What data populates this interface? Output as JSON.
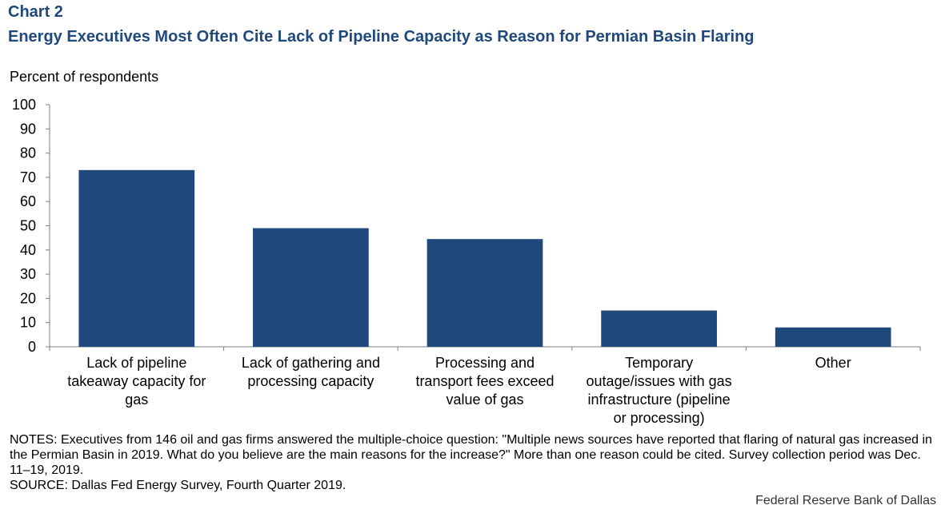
{
  "header": {
    "chart_label": "Chart 2",
    "title": "Energy Executives Most Often Cite Lack of Pipeline Capacity as Reason for Permian Basin Flaring"
  },
  "colors": {
    "bar": "#1f497d",
    "title": "#1f497d"
  },
  "chart_data": {
    "type": "bar",
    "title": "Energy Executives Most Often Cite Lack of Pipeline Capacity as Reason for Permian Basin Flaring",
    "ylabel": "Percent of respondents",
    "xlabel": "",
    "ylim": [
      0,
      100
    ],
    "yticks": [
      0,
      10,
      20,
      30,
      40,
      50,
      60,
      70,
      80,
      90,
      100
    ],
    "categories": [
      [
        "Lack of pipeline",
        "takeaway capacity for",
        "gas"
      ],
      [
        "Lack of gathering and",
        "processing capacity"
      ],
      [
        "Processing and",
        "transport fees exceed",
        "value of gas"
      ],
      [
        "Temporary",
        "outage/issues with gas",
        "infrastructure (pipeline",
        "or processing)"
      ],
      [
        "Other"
      ]
    ],
    "values": [
      73,
      49,
      44.5,
      15,
      8
    ],
    "grid": false
  },
  "notes": {
    "notes_text": "NOTES: Executives from 146 oil and gas firms answered the multiple-choice question: \"Multiple news sources have reported that flaring of natural gas increased in the Permian Basin in 2019. What do you believe are the main reasons for the increase?\" More than one reason could be cited. Survey collection period was Dec. 11–19, 2019.",
    "source_text": "SOURCE: Dallas Fed Energy Survey, Fourth Quarter 2019."
  },
  "footer": {
    "credit": "Federal Reserve Bank of Dallas"
  }
}
